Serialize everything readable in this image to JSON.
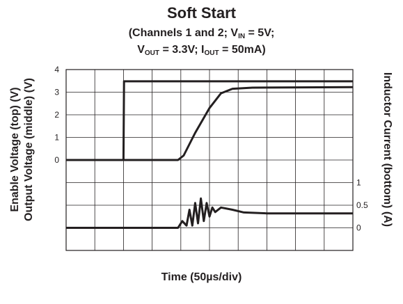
{
  "chart_data": {
    "type": "line",
    "title": "Soft Start",
    "subtitle_line1": "(Channels 1 and 2; V",
    "subtitle_line1_sub": "IN",
    "subtitle_line1_end": " = 5V;",
    "subtitle_line2_a": "V",
    "subtitle_line2_a_sub": "OUT",
    "subtitle_line2_b": " = 3.3V; I",
    "subtitle_line2_b_sub": "OUT",
    "subtitle_line2_c": " = 50mA)",
    "xlabel": "Time (50µs/div)",
    "ylabel_left_line1": "Enable Voltage (top) (V)",
    "ylabel_left_line2": "Output Voltage (middle) (V)",
    "ylabel_right": "Inductor Current (bottom) (A)",
    "x_unit": "div",
    "x_range": [
      0,
      10
    ],
    "grid": true,
    "left_axis": {
      "ticks": [
        "4",
        "3",
        "2",
        "1",
        "0"
      ],
      "range": [
        0,
        4
      ]
    },
    "right_axis": {
      "ticks": [
        "1",
        "0.5",
        "0"
      ],
      "range": [
        0,
        1
      ]
    },
    "series": [
      {
        "color": "#231f20",
        "axis": "left",
        "points": [
          [
            0,
            0
          ],
          [
            2.0,
            0
          ],
          [
            2.02,
            3.48
          ],
          [
            10,
            3.48
          ]
        ]
      },
      {
        "color": "#231f20",
        "axis": "left",
        "points": [
          [
            0,
            0
          ],
          [
            3.9,
            0
          ],
          [
            4.1,
            0.2
          ],
          [
            4.5,
            1.2
          ],
          [
            5.0,
            2.3
          ],
          [
            5.4,
            2.95
          ],
          [
            5.8,
            3.15
          ],
          [
            6.5,
            3.2
          ],
          [
            10,
            3.22
          ]
        ]
      },
      {
        "color": "#231f20",
        "axis": "right",
        "points": [
          [
            0,
            0
          ],
          [
            3.9,
            0
          ],
          [
            4.05,
            0.15
          ],
          [
            4.2,
            0.05
          ],
          [
            4.3,
            0.4
          ],
          [
            4.4,
            0.05
          ],
          [
            4.5,
            0.55
          ],
          [
            4.6,
            0.1
          ],
          [
            4.7,
            0.65
          ],
          [
            4.8,
            0.15
          ],
          [
            4.9,
            0.55
          ],
          [
            5.0,
            0.25
          ],
          [
            5.1,
            0.45
          ],
          [
            5.2,
            0.35
          ],
          [
            5.4,
            0.45
          ],
          [
            5.8,
            0.4
          ],
          [
            6.2,
            0.34
          ],
          [
            7.0,
            0.32
          ],
          [
            10,
            0.32
          ]
        ]
      }
    ]
  }
}
